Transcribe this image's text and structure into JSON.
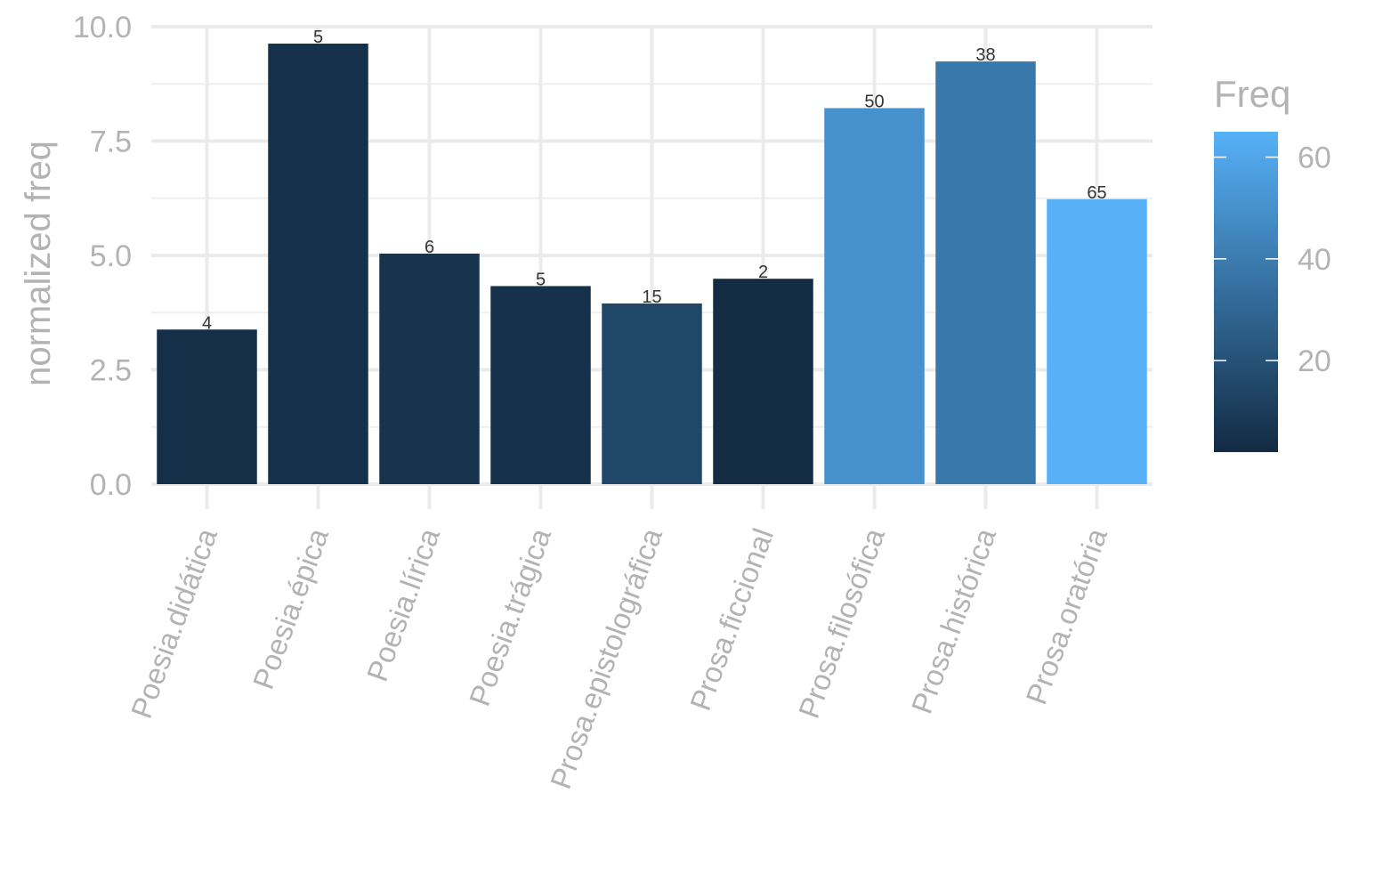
{
  "chart_data": {
    "type": "bar",
    "categories": [
      "Poesia.didática",
      "Poesia.épica",
      "Poesia.lírica",
      "Poesia.trágica",
      "Prosa.epistolográfica",
      "Prosa.ficcional",
      "Prosa.filosófica",
      "Prosa.histórica",
      "Prosa.oratória"
    ],
    "values": [
      3.38,
      9.63,
      5.04,
      4.33,
      3.95,
      4.49,
      8.22,
      9.24,
      6.23
    ],
    "freq": [
      4,
      5,
      6,
      5,
      15,
      2,
      50,
      38,
      65
    ],
    "data_labels": [
      "4",
      "5",
      "6",
      "5",
      "15",
      "2",
      "50",
      "38",
      "65"
    ],
    "ylabel": "normalized freq",
    "xlabel": "",
    "ylim": [
      0,
      10
    ],
    "yticks": [
      0,
      2.5,
      5,
      7.5,
      10
    ],
    "ytick_labels": [
      "0.0",
      "2.5",
      "5.0",
      "7.5",
      "10.0"
    ],
    "legend": {
      "title": "Freq",
      "position": "right",
      "range": [
        2,
        65
      ],
      "ticks": [
        20,
        40,
        60
      ],
      "tick_labels": [
        "20",
        "40",
        "60"
      ],
      "color_low": "#132B43",
      "color_high": "#56B1F7"
    },
    "grid": true
  }
}
